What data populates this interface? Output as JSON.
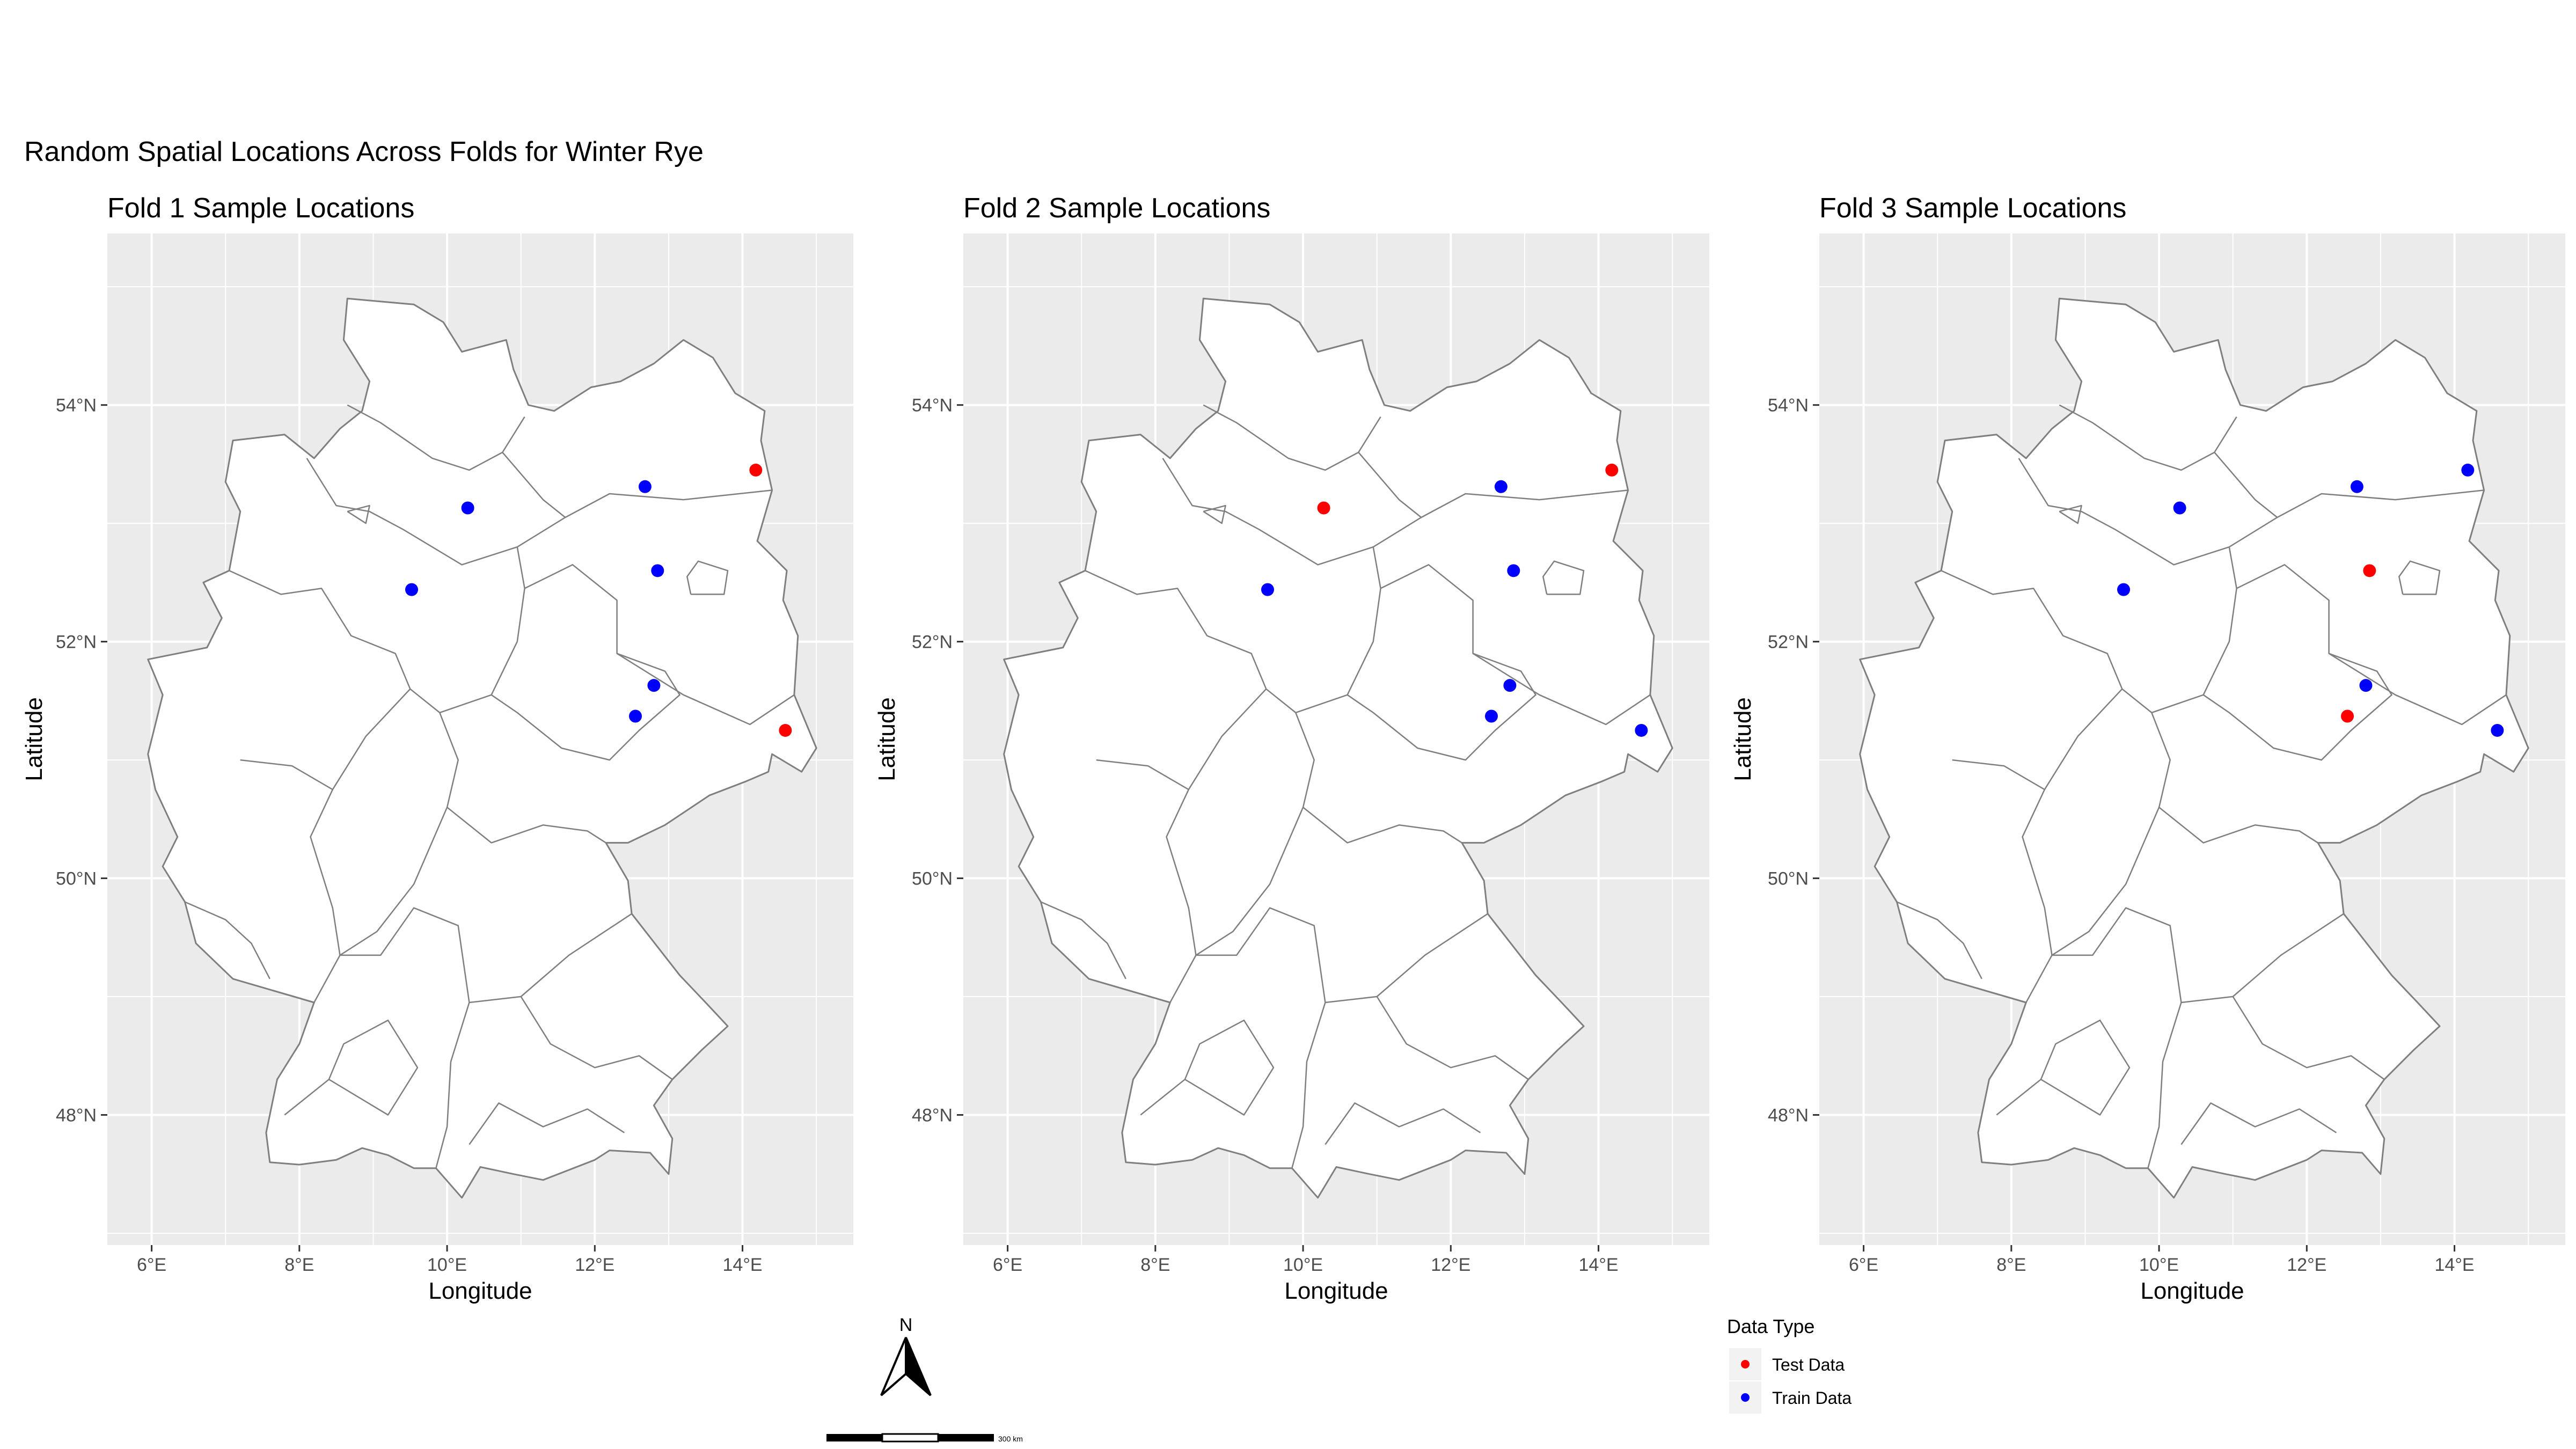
{
  "figure": {
    "title": "Random Spatial Locations Across Folds for Winter Rye"
  },
  "chart_data": [
    {
      "type": "scatter",
      "title": "Fold 1 Sample Locations",
      "xlabel": "Longitude",
      "ylabel": "Latitude",
      "xlim": [
        5.4,
        15.5
      ],
      "ylim": [
        46.9,
        55.45
      ],
      "x_ticks": [
        6,
        8,
        10,
        12,
        14
      ],
      "y_ticks": [
        48,
        50,
        52,
        54
      ],
      "x_tick_labels": [
        "6°E",
        "8°E",
        "10°E",
        "12°E",
        "14°E"
      ],
      "y_tick_labels": [
        "48°N",
        "50°N",
        "52°N",
        "54°N"
      ],
      "series": [
        {
          "name": "Test Data",
          "color": "#ff0000",
          "points": [
            [
              14.18,
              53.45
            ],
            [
              14.58,
              51.25
            ]
          ]
        },
        {
          "name": "Train Data",
          "color": "#0000ff",
          "points": [
            [
              10.28,
              53.13
            ],
            [
              12.68,
              53.31
            ],
            [
              9.52,
              52.44
            ],
            [
              12.85,
              52.6
            ],
            [
              12.8,
              51.63
            ],
            [
              12.55,
              51.37
            ]
          ]
        }
      ]
    },
    {
      "type": "scatter",
      "title": "Fold 2 Sample Locations",
      "xlabel": "Longitude",
      "ylabel": "Latitude",
      "xlim": [
        5.4,
        15.5
      ],
      "ylim": [
        46.9,
        55.45
      ],
      "x_ticks": [
        6,
        8,
        10,
        12,
        14
      ],
      "y_ticks": [
        48,
        50,
        52,
        54
      ],
      "x_tick_labels": [
        "6°E",
        "8°E",
        "10°E",
        "12°E",
        "14°E"
      ],
      "y_tick_labels": [
        "48°N",
        "50°N",
        "52°N",
        "54°N"
      ],
      "series": [
        {
          "name": "Test Data",
          "color": "#ff0000",
          "points": [
            [
              14.18,
              53.45
            ],
            [
              10.28,
              53.13
            ]
          ]
        },
        {
          "name": "Train Data",
          "color": "#0000ff",
          "points": [
            [
              12.68,
              53.31
            ],
            [
              9.52,
              52.44
            ],
            [
              12.85,
              52.6
            ],
            [
              12.8,
              51.63
            ],
            [
              12.55,
              51.37
            ],
            [
              14.58,
              51.25
            ]
          ]
        }
      ]
    },
    {
      "type": "scatter",
      "title": "Fold 3 Sample Locations",
      "xlabel": "Longitude",
      "ylabel": "Latitude",
      "xlim": [
        5.4,
        15.5
      ],
      "ylim": [
        46.9,
        55.45
      ],
      "x_ticks": [
        6,
        8,
        10,
        12,
        14
      ],
      "y_ticks": [
        48,
        50,
        52,
        54
      ],
      "x_tick_labels": [
        "6°E",
        "8°E",
        "10°E",
        "12°E",
        "14°E"
      ],
      "y_tick_labels": [
        "48°N",
        "50°N",
        "52°N",
        "54°N"
      ],
      "series": [
        {
          "name": "Test Data",
          "color": "#ff0000",
          "points": [
            [
              12.85,
              52.6
            ],
            [
              12.55,
              51.37
            ]
          ]
        },
        {
          "name": "Train Data",
          "color": "#0000ff",
          "points": [
            [
              14.18,
              53.45
            ],
            [
              10.28,
              53.13
            ],
            [
              12.68,
              53.31
            ],
            [
              9.52,
              52.44
            ],
            [
              12.8,
              51.63
            ],
            [
              14.58,
              51.25
            ]
          ]
        }
      ]
    }
  ],
  "legend": {
    "title": "Data Type",
    "items": [
      {
        "label": "Test Data",
        "color": "#ff0000"
      },
      {
        "label": "Train Data",
        "color": "#0000ff"
      }
    ]
  },
  "north_arrow": {
    "label": "N"
  },
  "scale_bar": {
    "label": "300 km"
  },
  "colors": {
    "panel_background": "#ebebeb",
    "grid": "#ffffff",
    "land_fill": "#ffffff",
    "boundary": "#7f7f7f",
    "axis_text": "#4d4d4d"
  }
}
